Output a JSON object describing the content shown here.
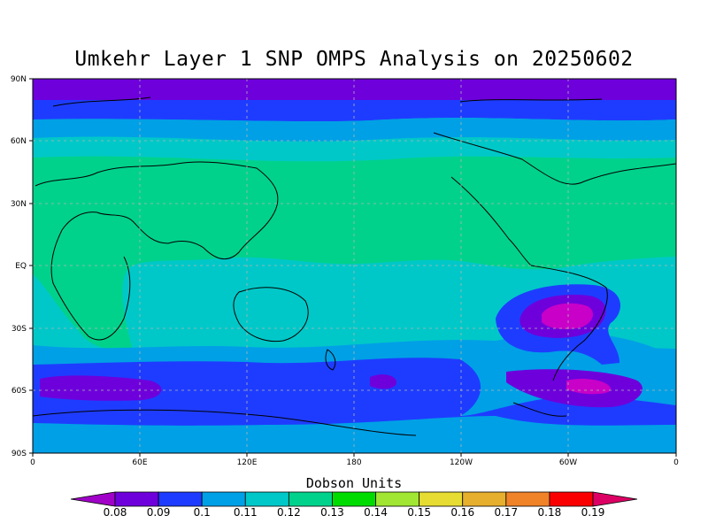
{
  "title": "Umkehr Layer 1 SNP OMPS Analysis on 20250602",
  "axes": {
    "lat_labels": [
      "90N",
      "60N",
      "30N",
      "EQ",
      "30S",
      "60S",
      "90S"
    ],
    "lon_labels": [
      "0",
      "60E",
      "120E",
      "180",
      "120W",
      "60W",
      "0"
    ]
  },
  "colorbar": {
    "title": "Dobson Units",
    "levels": [
      "0.08",
      "0.09",
      "0.1",
      "0.11",
      "0.12",
      "0.13",
      "0.14",
      "0.15",
      "0.16",
      "0.17",
      "0.18",
      "0.19"
    ],
    "colors": [
      "#a000c8",
      "#6e00dc",
      "#1e3cff",
      "#00a0e6",
      "#00c8c8",
      "#00d28c",
      "#00dc00",
      "#a0e632",
      "#e6dc32",
      "#e6af2d",
      "#f08228",
      "#fa0000",
      "#dc0064"
    ]
  },
  "map_colors": {
    "c009": "#6e00dc",
    "c010": "#1e3cff",
    "c011": "#00a0e6",
    "c012": "#00c8c8",
    "c013": "#00d28c",
    "c008": "#a000c8",
    "c014": "#c800c8"
  }
}
